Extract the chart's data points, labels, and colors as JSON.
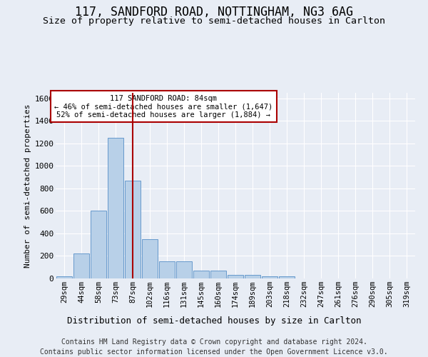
{
  "title": "117, SANDFORD ROAD, NOTTINGHAM, NG3 6AG",
  "subtitle": "Size of property relative to semi-detached houses in Carlton",
  "xlabel_bottom": "Distribution of semi-detached houses by size in Carlton",
  "ylabel": "Number of semi-detached properties",
  "categories": [
    "29sqm",
    "44sqm",
    "58sqm",
    "73sqm",
    "87sqm",
    "102sqm",
    "116sqm",
    "131sqm",
    "145sqm",
    "160sqm",
    "174sqm",
    "189sqm",
    "203sqm",
    "218sqm",
    "232sqm",
    "247sqm",
    "261sqm",
    "276sqm",
    "290sqm",
    "305sqm",
    "319sqm"
  ],
  "values": [
    20,
    220,
    600,
    1250,
    870,
    350,
    155,
    155,
    70,
    70,
    30,
    30,
    20,
    20,
    0,
    0,
    0,
    0,
    0,
    0,
    0
  ],
  "bar_color": "#b8d0e8",
  "bar_edge_color": "#6699cc",
  "annotation_line1": "117 SANDFORD ROAD: 84sqm",
  "annotation_line2": "← 46% of semi-detached houses are smaller (1,647)",
  "annotation_line3": "52% of semi-detached houses are larger (1,884) →",
  "vline_color": "#aa0000",
  "ylim": [
    0,
    1650
  ],
  "yticks": [
    0,
    200,
    400,
    600,
    800,
    1000,
    1200,
    1400,
    1600
  ],
  "bg_color": "#e8edf5",
  "grid_color": "#ffffff",
  "footer_line1": "Contains HM Land Registry data © Crown copyright and database right 2024.",
  "footer_line2": "Contains public sector information licensed under the Open Government Licence v3.0."
}
